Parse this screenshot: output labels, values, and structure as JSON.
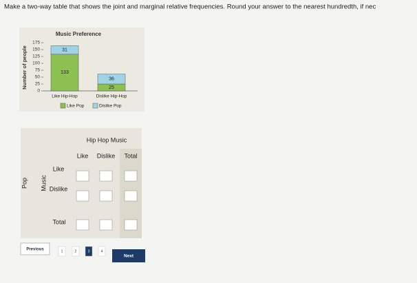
{
  "instruction": "Make a two-way table that shows the joint and marginal relative frequencies. Round your answer to the nearest hundredth, if nec",
  "chart": {
    "title": "Music Preference",
    "y_label": "Number of people",
    "categories": [
      "Like Hip-Hop",
      "Dislike Hip-Hop"
    ],
    "series": [
      {
        "name": "Like Pop",
        "color": "#8cc152",
        "values": [
          133,
          25
        ]
      },
      {
        "name": "Dislike Pop",
        "color": "#9fd3e6",
        "values": [
          31,
          36
        ]
      }
    ],
    "ylim": [
      0,
      175
    ],
    "yticks": [
      0,
      25,
      50,
      75,
      100,
      125,
      150,
      175
    ]
  },
  "table": {
    "column_group": "Hip Hop Music",
    "columns": [
      "Like",
      "Dislike",
      "Total"
    ],
    "row_group_outer": "Pop",
    "row_group_inner": "Music",
    "rows": [
      "Like",
      "Dislike",
      "Total"
    ]
  },
  "nav": {
    "previous": "Previous",
    "pages": [
      "1",
      "2",
      "3",
      "4"
    ],
    "next": "Next"
  }
}
